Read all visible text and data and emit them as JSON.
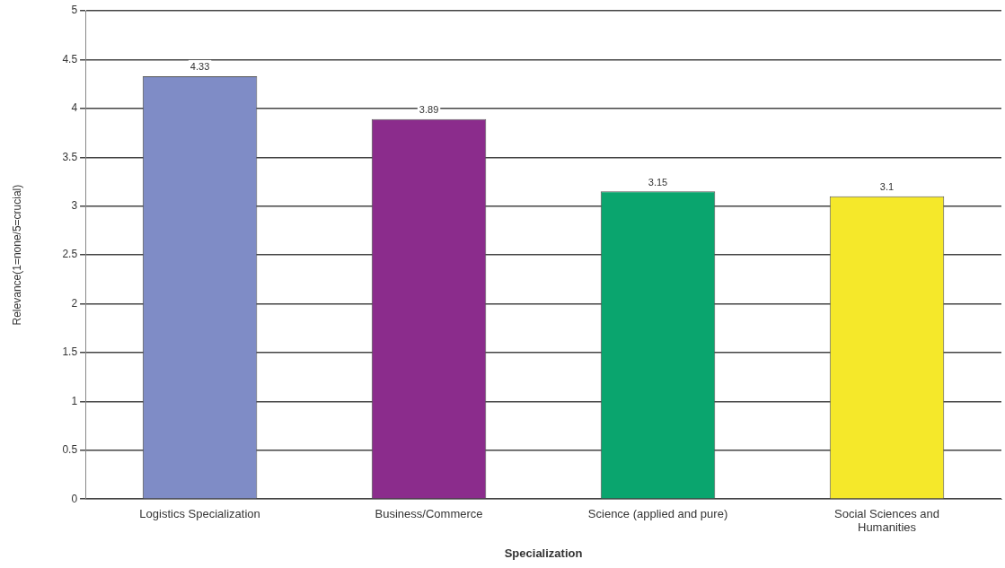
{
  "chart_data": {
    "type": "bar",
    "xlabel": "Specialization",
    "ylabel": "Relevance(1=none/5=crucial)",
    "categories": [
      "Logistics Specialization",
      "Business/Commerce",
      "Science (applied and pure)",
      [
        "Social Sciences and",
        "Humanities"
      ]
    ],
    "values": [
      4.33,
      3.89,
      3.15,
      3.1
    ],
    "colors": [
      "#7f8cc6",
      "#8b2c8c",
      "#0aa56e",
      "#f5e82a"
    ],
    "ylim": [
      0,
      5
    ],
    "yticks": [
      0,
      0.5,
      1,
      1.5,
      2,
      2.5,
      3,
      3.5,
      4,
      4.5,
      5
    ],
    "grid": "y",
    "legend": false,
    "data_labels": true
  }
}
